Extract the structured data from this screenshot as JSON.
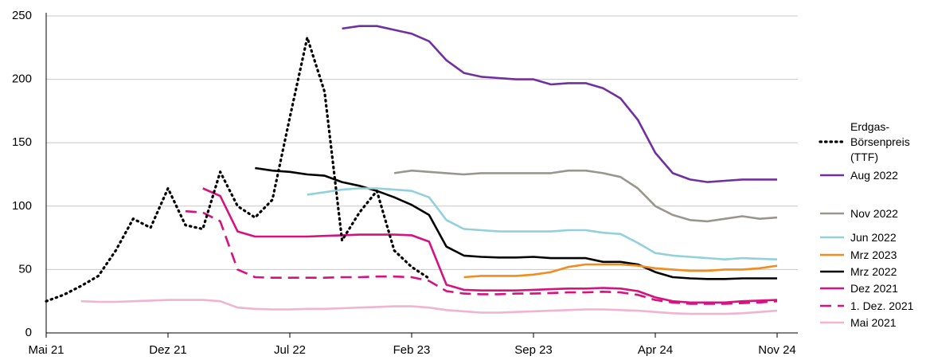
{
  "chart_data": {
    "type": "line",
    "categories": [
      "Mai 21",
      null,
      null,
      null,
      null,
      null,
      null,
      "Dez 21",
      null,
      null,
      null,
      null,
      null,
      null,
      "Jul 22",
      null,
      null,
      null,
      null,
      null,
      null,
      "Feb 23",
      null,
      null,
      null,
      null,
      null,
      null,
      "Sep 23",
      null,
      null,
      null,
      null,
      null,
      null,
      "Apr 24",
      null,
      null,
      null,
      null,
      null,
      null,
      "Nov 24"
    ],
    "ylim": [
      0,
      250
    ],
    "yticks": [
      0,
      50,
      100,
      150,
      200,
      250
    ],
    "grid": true,
    "legend": "right",
    "series": [
      {
        "name": "Erdgas-\nBörsenpreis\n(TTF)",
        "color": "#000000",
        "style": "dotted",
        "values": [
          25,
          30,
          37,
          45,
          65,
          90,
          83,
          114,
          85,
          82,
          127,
          100,
          91,
          105,
          170,
          233,
          190,
          73,
          95,
          112,
          65,
          52,
          43,
          null,
          null,
          null,
          null,
          null,
          null,
          null,
          null,
          null,
          null,
          null,
          null,
          null,
          null,
          null,
          null,
          null,
          null,
          null,
          null
        ]
      },
      {
        "name": "Aug 2022",
        "color": "#7030a0",
        "style": "solid",
        "values": [
          null,
          null,
          null,
          null,
          null,
          null,
          null,
          null,
          null,
          null,
          null,
          null,
          null,
          null,
          null,
          null,
          null,
          240,
          242,
          242,
          239,
          236,
          230,
          215,
          205,
          202,
          201,
          200,
          200,
          196,
          197,
          197,
          193,
          185,
          168,
          142,
          126,
          121,
          119,
          120,
          121,
          121,
          121
        ]
      },
      {
        "name": "Nov 2022",
        "color": "#9a968e",
        "style": "solid",
        "values": [
          null,
          null,
          null,
          null,
          null,
          null,
          null,
          null,
          null,
          null,
          null,
          null,
          null,
          null,
          null,
          null,
          null,
          null,
          null,
          null,
          126,
          128,
          127,
          126,
          125,
          126,
          126,
          126,
          126,
          126,
          128,
          128,
          126,
          123,
          114,
          100,
          93,
          89,
          88,
          90,
          92,
          90,
          91
        ]
      },
      {
        "name": "Jun 2022",
        "color": "#92d0dc",
        "style": "solid",
        "values": [
          null,
          null,
          null,
          null,
          null,
          null,
          null,
          null,
          null,
          null,
          null,
          null,
          null,
          null,
          null,
          109,
          111,
          113,
          114,
          114,
          113,
          112,
          107,
          89,
          82,
          81,
          80,
          80,
          80,
          80,
          81,
          81,
          79,
          78,
          71,
          63,
          61,
          60,
          59,
          58,
          59,
          58.5,
          58
        ]
      },
      {
        "name": "Mrz 2023",
        "color": "#f28c1e",
        "style": "solid",
        "values": [
          null,
          null,
          null,
          null,
          null,
          null,
          null,
          null,
          null,
          null,
          null,
          null,
          null,
          null,
          null,
          null,
          null,
          null,
          null,
          null,
          null,
          null,
          null,
          null,
          44,
          45,
          45,
          45,
          46,
          48,
          52,
          54,
          54,
          54,
          53,
          51,
          50,
          49,
          49,
          50,
          50,
          51,
          53
        ]
      },
      {
        "name": "Mrz 2022",
        "color": "#000000",
        "style": "solid",
        "values": [
          null,
          null,
          null,
          null,
          null,
          null,
          null,
          null,
          null,
          null,
          null,
          null,
          130,
          128,
          127,
          125,
          124,
          119,
          116,
          112,
          107,
          101,
          93,
          68,
          61,
          60,
          59.5,
          59.5,
          60,
          59,
          59,
          59,
          56,
          56,
          54,
          48,
          44,
          43,
          42.5,
          42.5,
          43,
          43,
          43
        ]
      },
      {
        "name": "Dez 2021",
        "color": "#d6127f",
        "style": "solid",
        "values": [
          null,
          null,
          null,
          null,
          null,
          null,
          null,
          null,
          null,
          114,
          108,
          80,
          76,
          76,
          76,
          76,
          76.5,
          77,
          77.5,
          77.5,
          77.5,
          77,
          72,
          38,
          34,
          33.5,
          33.5,
          33.5,
          34,
          34.5,
          35,
          35,
          35.5,
          35,
          33,
          28,
          25,
          24,
          24,
          24,
          25,
          25.5,
          26
        ]
      },
      {
        "name": "1. Dez. 2021",
        "color": "#d6127f",
        "style": "dashed",
        "values": [
          null,
          null,
          null,
          null,
          null,
          null,
          null,
          null,
          96,
          95,
          88,
          50,
          44,
          43.5,
          43.5,
          43.5,
          43.5,
          44,
          44,
          44.5,
          44.5,
          44,
          41,
          33,
          31,
          30.5,
          30.5,
          31,
          31,
          31.5,
          32,
          32,
          32.5,
          32,
          30,
          26,
          24,
          23,
          23,
          23,
          23.5,
          24,
          25
        ]
      },
      {
        "name": "Mai 2021",
        "color": "#f0b4cf",
        "style": "solid",
        "values": [
          null,
          null,
          25,
          24.5,
          24.5,
          25,
          25.5,
          26,
          26,
          26,
          25,
          20,
          19,
          18.5,
          18.5,
          19,
          19,
          19.5,
          20,
          20.5,
          21,
          21,
          20,
          18,
          17,
          16,
          16,
          16.5,
          17,
          17.5,
          18,
          18.5,
          18.5,
          18,
          17.5,
          16.5,
          15.5,
          15,
          15,
          15,
          15.5,
          16.5,
          17.5
        ]
      }
    ]
  }
}
